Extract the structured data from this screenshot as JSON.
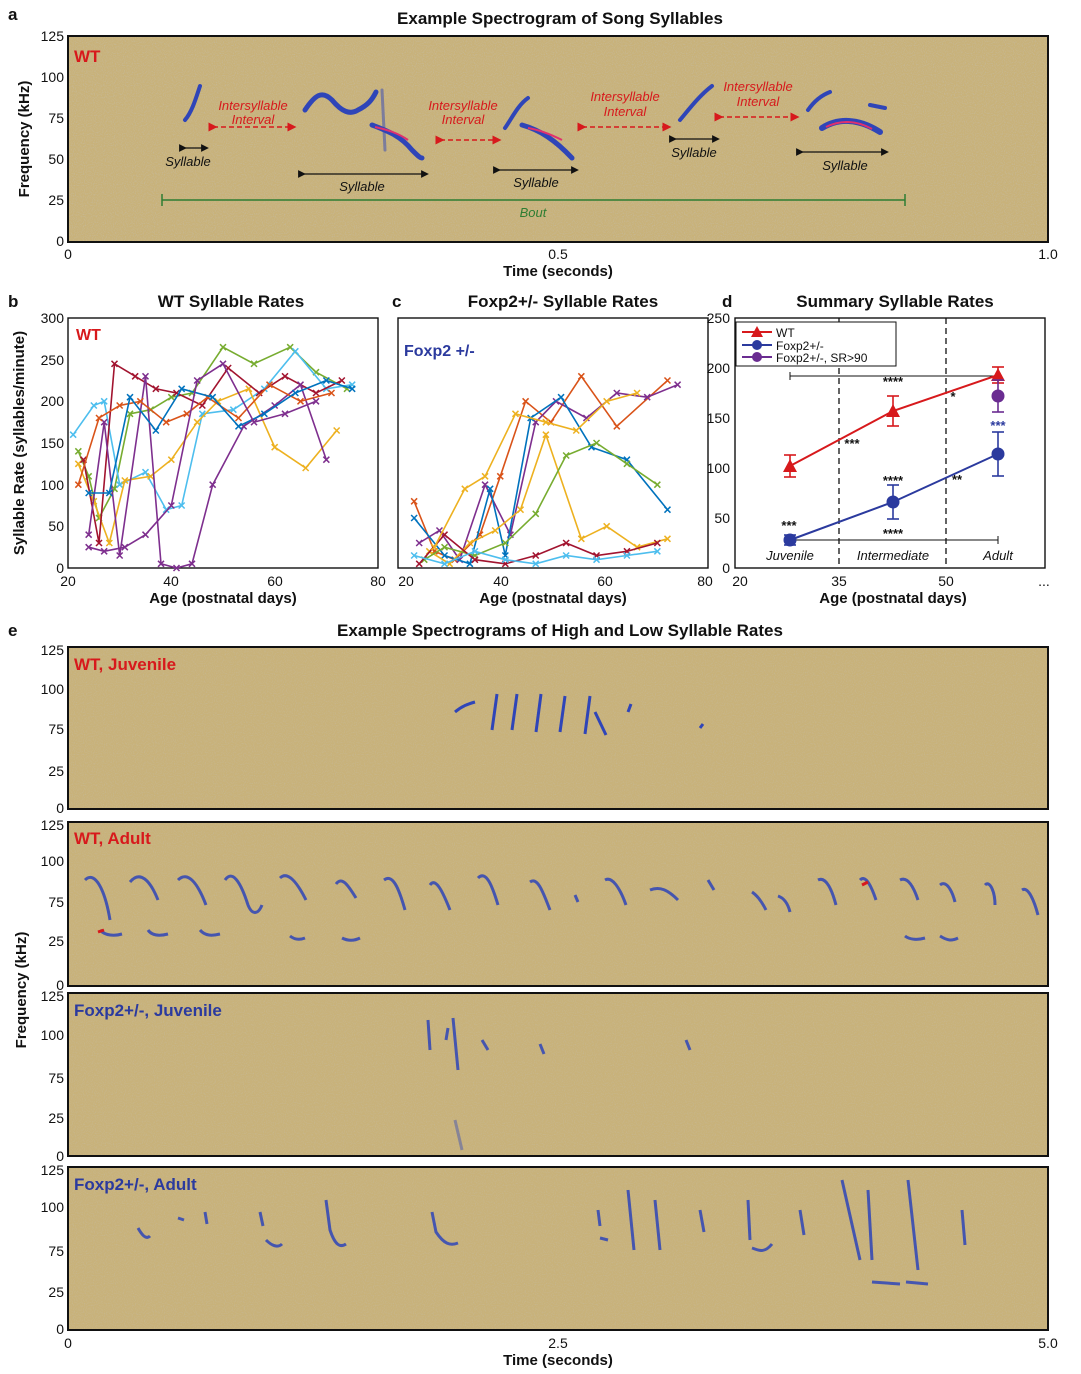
{
  "colors": {
    "wt": "#d7191c",
    "het": "#2b3a9e",
    "het_sr": "#6a2c91",
    "spec_bg": "#c8b27a",
    "spec_blob": "#2f45b8",
    "bout": "#2e7d32"
  },
  "panel_a": {
    "letter": "a",
    "title": "Example Spectrogram of Song Syllables",
    "label": "WT",
    "ylabel": "Frequency (kHz)",
    "xlabel": "Time (seconds)",
    "yticks": [
      "125",
      "100",
      "75",
      "50",
      "25",
      "0"
    ],
    "xticks": [
      "0",
      "0.5",
      "1.0"
    ],
    "syllable_label": "Syllable",
    "interval_label_1": "Intersyllable",
    "interval_label_2": "Interval",
    "bout_label": "Bout"
  },
  "panel_b": {
    "letter": "b",
    "title": "WT Syllable Rates",
    "label": "WT"
  },
  "panel_c": {
    "letter": "c",
    "title": "Foxp2+/- Syllable Rates",
    "label": "Foxp2 +/-"
  },
  "panel_d": {
    "letter": "d",
    "title": "Summary Syllable Rates",
    "legend": [
      "WT",
      "Foxp2+/-",
      "Foxp2+/-, SR>90"
    ],
    "group_labels": [
      "Juvenile",
      "Intermediate",
      "Adult"
    ],
    "xticks": [
      "20",
      "35",
      "50",
      "..."
    ],
    "sig": {
      "top_bracket": "****",
      "bottom_bracket": "****",
      "wt_mid": "****",
      "wt_end": "*",
      "sr_end": "***",
      "juv": "***",
      "between_1": "***",
      "het_mid": "****",
      "between_2": "**"
    }
  },
  "shared_bc": {
    "ylabel": "Syllable Rate (syllables/minute)",
    "xlabel": "Age (postnatal days)",
    "yticks": [
      "300",
      "250",
      "200",
      "150",
      "100",
      "50",
      "0"
    ],
    "xticks": [
      "20",
      "40",
      "60",
      "80"
    ]
  },
  "panel_e": {
    "letter": "e",
    "title": "Example Spectrograms of High and Low Syllable Rates",
    "strip_labels": [
      "WT, Juvenile",
      "WT, Adult",
      "Foxp2+/-, Juvenile",
      "Foxp2+/-, Adult"
    ],
    "yticks": [
      "125",
      "100",
      "75",
      "25",
      "0"
    ],
    "ylabel": "Frequency (kHz)",
    "xlabel": "Time (seconds)",
    "xticks": [
      "0",
      "2.5",
      "5.0"
    ]
  },
  "chart_data": [
    {
      "type": "line",
      "panel": "b",
      "title": "WT Syllable Rates",
      "xlabel": "Age (postnatal days)",
      "ylabel": "Syllable Rate (syllables/minute)",
      "xlim": [
        20,
        80
      ],
      "ylim": [
        0,
        300
      ],
      "series": [
        {
          "color": "#77ac30",
          "x": [
            22,
            24,
            26,
            29,
            32,
            36,
            40,
            44,
            50,
            56,
            63,
            68,
            74
          ],
          "y": [
            140,
            110,
            60,
            95,
            185,
            190,
            205,
            210,
            265,
            245,
            265,
            235,
            215
          ]
        },
        {
          "color": "#4dbeee",
          "x": [
            21,
            25,
            27,
            30,
            35,
            39,
            42,
            46,
            52,
            58,
            64,
            70,
            75
          ],
          "y": [
            160,
            195,
            200,
            100,
            115,
            70,
            75,
            185,
            190,
            215,
            260,
            215,
            220
          ]
        },
        {
          "color": "#edb120",
          "x": [
            22,
            25,
            28,
            31,
            36,
            40,
            45,
            49,
            55,
            60,
            66,
            72
          ],
          "y": [
            125,
            80,
            30,
            105,
            110,
            130,
            175,
            200,
            215,
            145,
            120,
            165
          ]
        },
        {
          "color": "#a2142f",
          "x": [
            23,
            26,
            29,
            33,
            37,
            41,
            46,
            51,
            57,
            62,
            68,
            73
          ],
          "y": [
            130,
            30,
            245,
            230,
            215,
            210,
            195,
            240,
            210,
            230,
            210,
            225
          ]
        },
        {
          "color": "#7e2f8e",
          "x": [
            24,
            27,
            30,
            35,
            38,
            41,
            44,
            48,
            54,
            60,
            65,
            70
          ],
          "y": [
            40,
            175,
            15,
            230,
            5,
            0,
            5,
            100,
            170,
            195,
            220,
            130
          ]
        },
        {
          "color": "#d95319",
          "x": [
            22,
            26,
            30,
            34,
            39,
            43,
            47,
            53,
            59,
            65,
            71
          ],
          "y": [
            100,
            180,
            195,
            200,
            175,
            185,
            205,
            180,
            220,
            200,
            210
          ]
        },
        {
          "color": "#0072bd",
          "x": [
            24,
            28,
            32,
            37,
            42,
            48,
            53,
            58,
            64,
            70,
            75
          ],
          "y": [
            90,
            90,
            205,
            165,
            215,
            205,
            170,
            185,
            210,
            225,
            215
          ]
        },
        {
          "color": "#7e2f8e",
          "x": [
            24,
            27,
            31,
            35,
            40,
            45,
            50,
            56,
            62,
            68
          ],
          "y": [
            25,
            20,
            25,
            40,
            75,
            225,
            245,
            175,
            185,
            200
          ]
        }
      ]
    },
    {
      "type": "line",
      "panel": "c",
      "title": "Foxp2+/- Syllable Rates",
      "xlabel": "Age (postnatal days)",
      "xlim": [
        20,
        80
      ],
      "ylim": [
        0,
        300
      ],
      "series": [
        {
          "color": "#d95319",
          "x": [
            22,
            26,
            30,
            35,
            39,
            44,
            49,
            55,
            62,
            72
          ],
          "y": [
            80,
            20,
            10,
            40,
            110,
            200,
            175,
            230,
            170,
            225
          ]
        },
        {
          "color": "#7e2f8e",
          "x": [
            23,
            27,
            31,
            36,
            41,
            46,
            50,
            56,
            62,
            68,
            74
          ],
          "y": [
            30,
            45,
            10,
            100,
            40,
            175,
            200,
            180,
            210,
            205,
            220
          ]
        },
        {
          "color": "#0072bd",
          "x": [
            22,
            28,
            33,
            37,
            40,
            45,
            51,
            57,
            64,
            72
          ],
          "y": [
            60,
            15,
            5,
            95,
            15,
            180,
            205,
            145,
            130,
            70
          ]
        },
        {
          "color": "#edb120",
          "x": [
            25,
            29,
            33,
            38,
            43,
            48,
            55,
            60,
            66,
            72
          ],
          "y": [
            20,
            5,
            30,
            45,
            70,
            160,
            35,
            50,
            25,
            35
          ]
        },
        {
          "color": "#77ac30",
          "x": [
            24,
            28,
            34,
            40,
            46,
            52,
            58,
            64,
            70
          ],
          "y": [
            10,
            25,
            15,
            30,
            65,
            135,
            150,
            125,
            100
          ]
        },
        {
          "color": "#a2142f",
          "x": [
            23,
            28,
            34,
            40,
            46,
            52,
            58,
            64,
            70
          ],
          "y": [
            5,
            40,
            10,
            5,
            15,
            30,
            15,
            20,
            30
          ]
        },
        {
          "color": "#4dbeee",
          "x": [
            22,
            28,
            34,
            40,
            46,
            52,
            58,
            64,
            70
          ],
          "y": [
            15,
            5,
            20,
            10,
            5,
            15,
            10,
            15,
            20
          ]
        },
        {
          "color": "#edb120",
          "x": [
            26,
            32,
            36,
            42,
            48,
            54,
            60,
            66
          ],
          "y": [
            25,
            95,
            110,
            185,
            175,
            165,
            200,
            210
          ]
        }
      ]
    },
    {
      "type": "line",
      "panel": "d",
      "title": "Summary Syllable Rates",
      "xlabel": "Age (postnatal days)",
      "ylim": [
        0,
        250
      ],
      "categories": [
        "Juvenile",
        "Intermediate",
        "Adult"
      ],
      "series": [
        {
          "name": "WT",
          "color": "#d7191c",
          "x": [
            27.5,
            42.5,
            57.5
          ],
          "values": [
            102,
            157,
            193
          ],
          "err": [
            11,
            15,
            8
          ]
        },
        {
          "name": "Foxp2+/-",
          "color": "#2b3a9e",
          "x": [
            27.5,
            42.5,
            57.5
          ],
          "values": [
            28,
            66,
            114
          ],
          "err": [
            5,
            17,
            22
          ]
        },
        {
          "name": "Foxp2+/-, SR>90",
          "color": "#6a2c91",
          "x": [
            57.5
          ],
          "values": [
            172
          ],
          "err": [
            16
          ]
        }
      ],
      "dividers_at": [
        35,
        50
      ]
    }
  ]
}
